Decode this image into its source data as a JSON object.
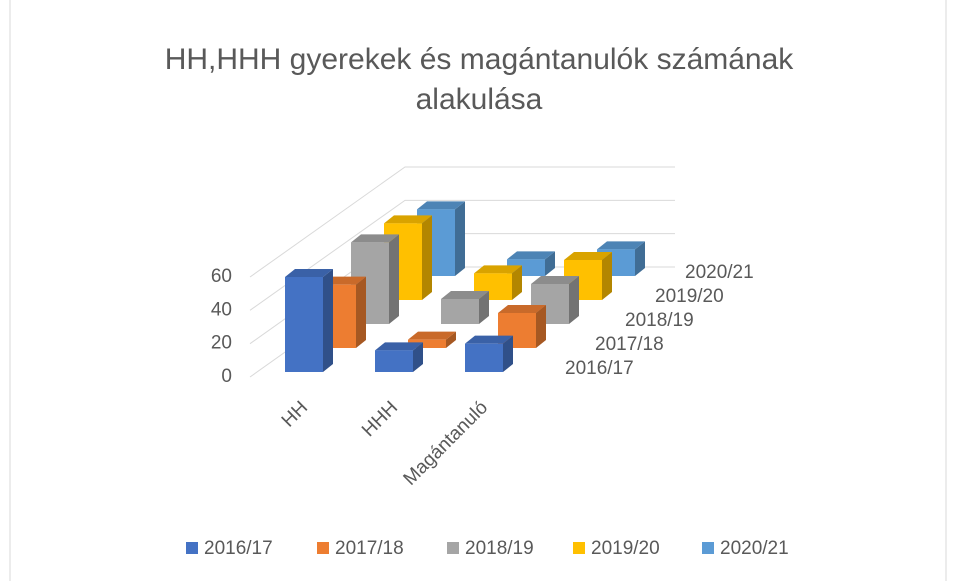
{
  "chart_data": {
    "type": "bar3d",
    "title": "HH,HHH gyerekek és magántanulók számának alakulása",
    "categories": [
      "HH",
      "HHH",
      "Magántanuló"
    ],
    "series": [
      {
        "name": "2016/17",
        "color": "#4472c4",
        "values": [
          57,
          13,
          17
        ]
      },
      {
        "name": "2017/18",
        "color": "#ed7d31",
        "values": [
          38,
          5,
          21
        ]
      },
      {
        "name": "2018/19",
        "color": "#a5a5a5",
        "values": [
          49,
          15,
          24
        ]
      },
      {
        "name": "2019/20",
        "color": "#ffc000",
        "values": [
          46,
          16,
          24
        ]
      },
      {
        "name": "2020/21",
        "color": "#5b9bd5",
        "values": [
          40,
          10,
          16
        ]
      }
    ],
    "ylim": [
      0,
      100
    ],
    "yticks": [
      0,
      20,
      40,
      60
    ],
    "grid": true,
    "legend": "bottom"
  }
}
